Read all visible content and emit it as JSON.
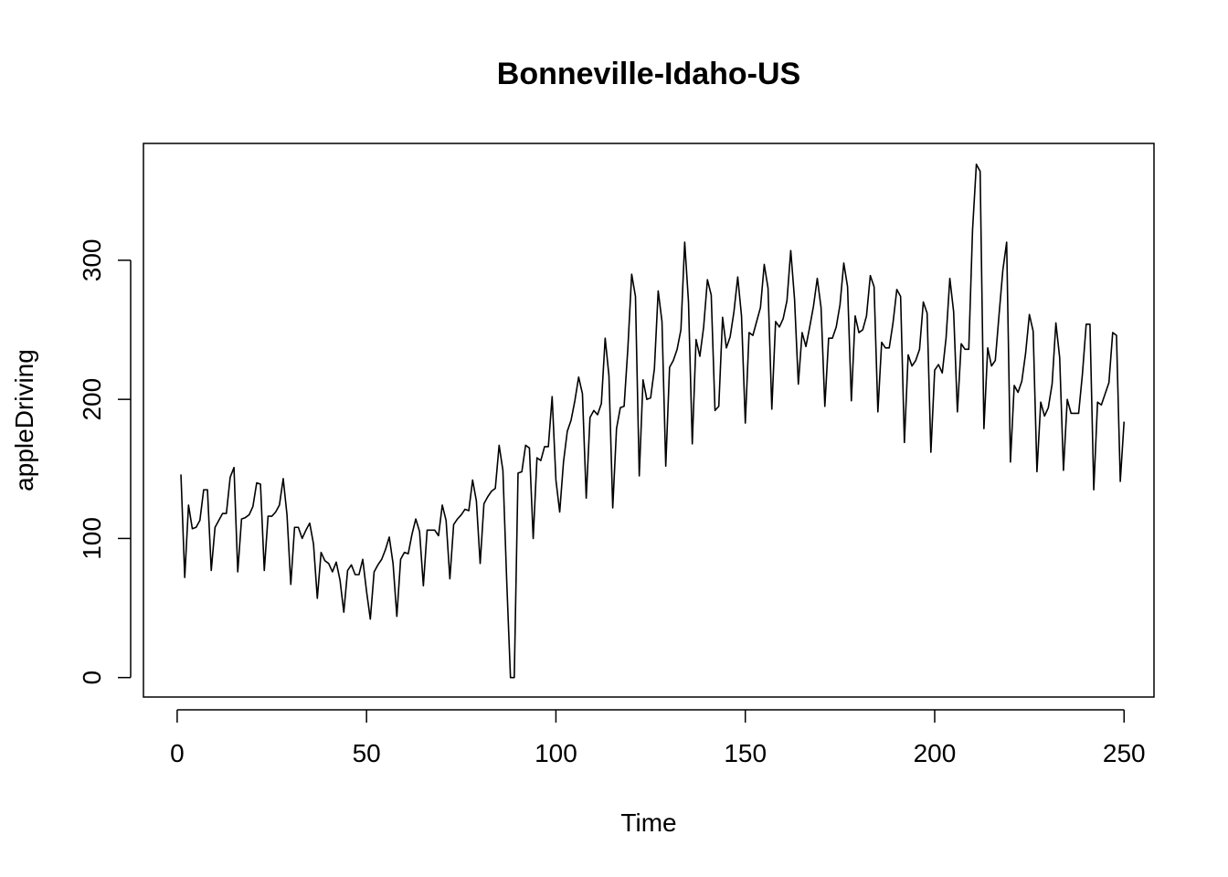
{
  "chart_data": {
    "type": "line",
    "title": "Bonneville-Idaho-US",
    "xlabel": "Time",
    "ylabel": "appleDriving",
    "xlim": [
      -8.9,
      257.9
    ],
    "ylim": [
      -14,
      384
    ],
    "x_ticks": [
      0,
      50,
      100,
      150,
      200,
      250
    ],
    "x_tick_labels": [
      "0",
      "50",
      "100",
      "150",
      "200",
      "250"
    ],
    "y_ticks": [
      0,
      100,
      200,
      300
    ],
    "y_tick_labels": [
      "0",
      "100",
      "200",
      "300"
    ],
    "grid": false,
    "series": [
      {
        "x_start": 1,
        "values": [
          146,
          72,
          124,
          107,
          108,
          113,
          135,
          135,
          77,
          108,
          113,
          118,
          118,
          144,
          151,
          76,
          114,
          115,
          117,
          123,
          140,
          139,
          77,
          116,
          116,
          119,
          124,
          143,
          117,
          67,
          108,
          108,
          100,
          106,
          111,
          96,
          57,
          90,
          84,
          82,
          76,
          83,
          70,
          47,
          77,
          81,
          74,
          74,
          85,
          62,
          42,
          76,
          81,
          85,
          92,
          101,
          82,
          44,
          85,
          90,
          89,
          103,
          114,
          105,
          66,
          106,
          106,
          106,
          102,
          124,
          113,
          71,
          110,
          114,
          117,
          121,
          120,
          142,
          127,
          82,
          125,
          130,
          134,
          136,
          167,
          149,
          70,
          0,
          0,
          147,
          148,
          167,
          165,
          100,
          158,
          156,
          166,
          166,
          202,
          142,
          119,
          155,
          177,
          185,
          199,
          216,
          204,
          129,
          187,
          192,
          189,
          197,
          244,
          217,
          122,
          179,
          194,
          195,
          237,
          290,
          274,
          145,
          214,
          200,
          201,
          222,
          278,
          256,
          152,
          223,
          228,
          236,
          250,
          313,
          270,
          168,
          243,
          231,
          252,
          286,
          275,
          192,
          195,
          259,
          237,
          245,
          263,
          288,
          260,
          183,
          248,
          246,
          256,
          266,
          297,
          280,
          193,
          256,
          252,
          258,
          271,
          307,
          272,
          211,
          248,
          238,
          252,
          267,
          287,
          266,
          195,
          244,
          244,
          252,
          268,
          298,
          281,
          199,
          260,
          248,
          250,
          260,
          289,
          281,
          191,
          241,
          237,
          237,
          255,
          279,
          274,
          169,
          232,
          224,
          228,
          236,
          270,
          262,
          162,
          221,
          225,
          219,
          244,
          287,
          263,
          191,
          240,
          236,
          236,
          322,
          369,
          364,
          179,
          237,
          224,
          228,
          261,
          293,
          313,
          155,
          210,
          205,
          213,
          233,
          261,
          249,
          148,
          198,
          188,
          194,
          211,
          255,
          230,
          149,
          200,
          190,
          190,
          190,
          218,
          254,
          254,
          135,
          198,
          196,
          204,
          212,
          248,
          246,
          141,
          184
        ]
      }
    ]
  }
}
